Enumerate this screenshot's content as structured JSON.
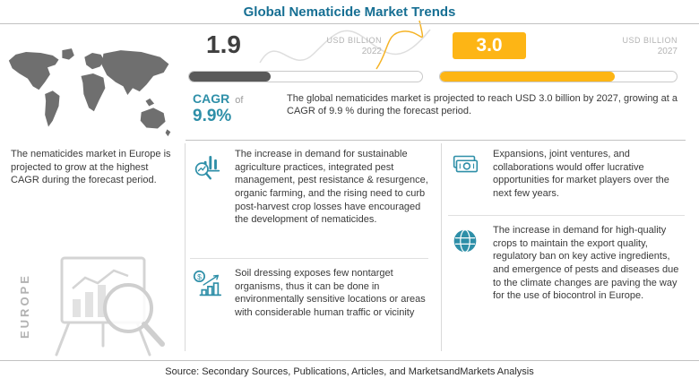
{
  "title": "Global Nematicide Market Trends",
  "colors": {
    "title": "#166f93",
    "teal": "#2e8fa8",
    "yellow": "#f5b325",
    "yellow_fill": "#fdb515",
    "dark": "#3f3f3f",
    "dark_bar": "#595959",
    "muted": "#b3b3b3"
  },
  "chart_data": {
    "type": "bar",
    "categories": [
      "2022",
      "2027"
    ],
    "values": [
      1.9,
      3.0
    ],
    "unit": "USD Billion",
    "title": "Global Nematicide Market Trends",
    "cagr_percent": 9.9,
    "forecast_note": "growing at a CAGR of 9.9 % during the forecast period"
  },
  "left_panel": {
    "caption": "The nematicides market in Europe is projected to grow at the highest CAGR during the forecast period.",
    "region_label": "EUROPE"
  },
  "stats": {
    "value_2022": "1.9",
    "unit_2022": "USD BILLION",
    "year_2022": "2022",
    "bar_2022_pct": 35,
    "value_2027": "3.0",
    "unit_2027": "USD BILLION",
    "year_2027": "2027",
    "bar_2027_pct": 74,
    "cagr_label": "CAGR",
    "cagr_connector": "of",
    "cagr_value": "9.9%",
    "summary": "The global nematicides market is projected to reach USD 3.0 billion by 2027, growing at a CAGR of 9.9 % during the forecast period."
  },
  "bullets_middle": [
    {
      "icon": "chart-magnifier-icon",
      "text": "The increase in demand for sustainable agriculture practices, integrated pest management, pest resistance & resurgence, organic farming, and the rising need to curb post-harvest crop losses have encouraged the development of nematicides."
    },
    {
      "icon": "growth-dollar-icon",
      "text": "Soil dressing exposes few nontarget organisms, thus it can be done in environmentally sensitive locations or areas with considerable human traffic or vicinity"
    }
  ],
  "bullets_right": [
    {
      "icon": "banknotes-icon",
      "text": "Expansions, joint ventures, and collaborations would offer lucrative opportunities for market players over the next few years."
    },
    {
      "icon": "globe-icon",
      "text": "The increase in demand for high-quality crops to maintain the export quality, regulatory ban on key active ingredients, and emergence of pests and diseases due to the climate changes are paving the way for the use of biocontrol in Europe."
    }
  ],
  "footer": {
    "source": "Source: Secondary Sources, Publications, Articles, and MarketsandMarkets Analysis"
  }
}
